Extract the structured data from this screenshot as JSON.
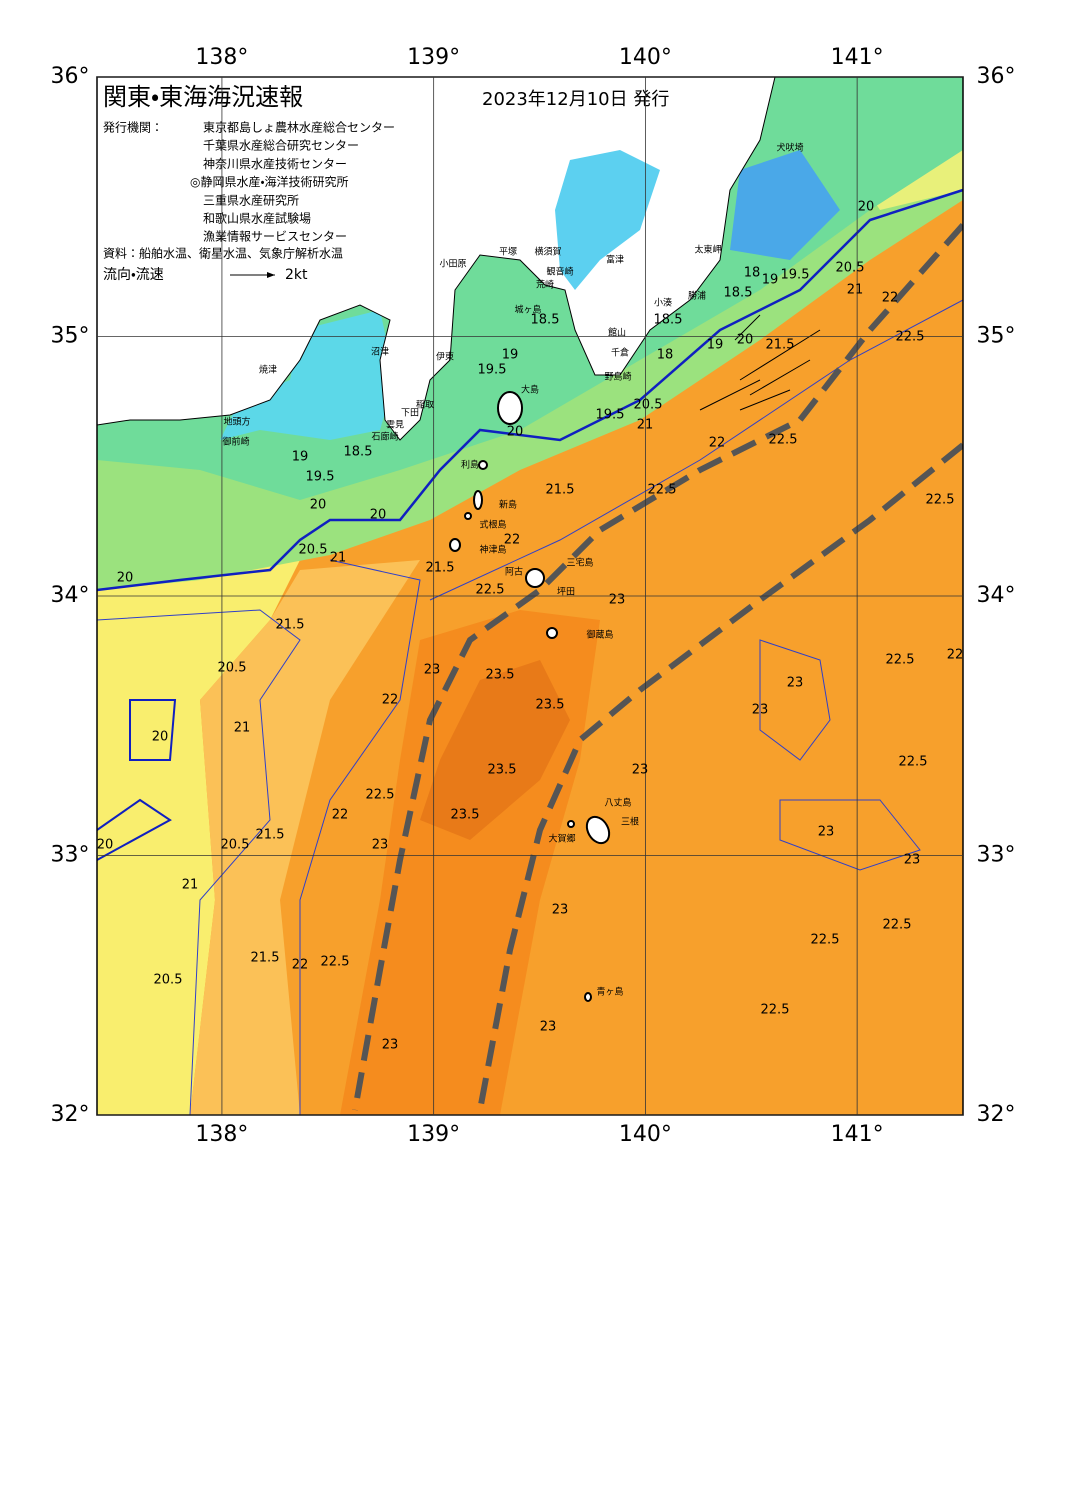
{
  "header": {
    "title": "関東・東海海況速報",
    "date": "2023年12月10日 発行",
    "issuer_label": "発行機関：",
    "issuers": [
      "東京都島しょ農林水産総合センター",
      "千葉県水産総合研究センター",
      "神奈川県水産技術センター",
      "◎静岡県水産・海洋技術研究所",
      "三重県水産研究所",
      "和歌山県水産試験場",
      "漁業情報サービスセンター"
    ],
    "source": "資料：船舶水温、衛星水温、気象庁解析水温",
    "flow_legend": "流向・流速",
    "flow_scale": "2kt"
  },
  "axes": {
    "lonlim": [
      137.41,
      141.5
    ],
    "latlim": [
      32,
      36
    ],
    "lon_ticks": [
      {
        "value": 138,
        "label": "138°"
      },
      {
        "value": 139,
        "label": "139°"
      },
      {
        "value": 140,
        "label": "140°"
      },
      {
        "value": 141,
        "label": "141°"
      }
    ],
    "lat_ticks": [
      {
        "value": 36,
        "label": "36°"
      },
      {
        "value": 35,
        "label": "35°"
      },
      {
        "value": 34,
        "label": "34°"
      },
      {
        "value": 33,
        "label": "33°"
      },
      {
        "value": 32,
        "label": "32°"
      }
    ]
  },
  "places": [
    "犬吠埼",
    "太東岬",
    "勝浦",
    "小湊",
    "館山",
    "千倉",
    "野島崎",
    "富津",
    "観音崎",
    "荒崎",
    "城ヶ島",
    "平塚",
    "横須賀",
    "小田原",
    "大島",
    "利島",
    "新島",
    "式根島",
    "神津島",
    "三宅島",
    "阿古",
    "坪田",
    "御蔵島",
    "八丈島",
    "三根",
    "大賀郷",
    "青ヶ島",
    "沼津",
    "伊東",
    "稲取",
    "下田",
    "石廊崎",
    "雲見",
    "焼津",
    "御前崎",
    "地頭方"
  ],
  "isotherm_labels": [
    19,
    18.5,
    19.5,
    20,
    20,
    20.5,
    21,
    20,
    21.5,
    22.5,
    22,
    21.5,
    20,
    19.5,
    20.5,
    21,
    22,
    22.5,
    22.5,
    19.5,
    19,
    18.5,
    18.5,
    18,
    19,
    19.5,
    20.5,
    20,
    21,
    22,
    22.5,
    18.5,
    18,
    19,
    20,
    21.5,
    21.5,
    20.5,
    21,
    20,
    22,
    23,
    23.5,
    23.5,
    23.5,
    23.5,
    22.5,
    22,
    21.5,
    20.5,
    21,
    23,
    23,
    22.5,
    22,
    23,
    23,
    22.5,
    23,
    23,
    23,
    22.5,
    22.5,
    22.5,
    23,
    23,
    23,
    21.5,
    22,
    22.5,
    20.5,
    22.5,
    20
  ]
}
